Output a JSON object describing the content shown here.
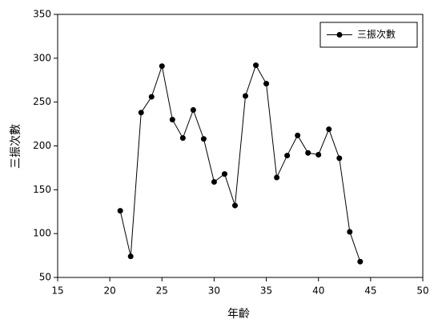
{
  "chart_data": {
    "type": "line",
    "xlabel": "年齡",
    "ylabel": "三振次數",
    "x": [
      21,
      22,
      23,
      24,
      25,
      26,
      27,
      28,
      29,
      30,
      31,
      32,
      33,
      34,
      35,
      36,
      37,
      38,
      39,
      40,
      41,
      42,
      43,
      44
    ],
    "series": [
      {
        "name": "三振次數",
        "color": "#000000",
        "values": [
          126,
          74,
          238,
          256,
          291,
          230,
          209,
          241,
          208,
          159,
          168,
          132,
          257,
          292,
          271,
          164,
          189,
          212,
          192,
          190,
          219,
          186,
          102,
          68
        ]
      }
    ],
    "xlim": [
      15,
      50
    ],
    "xticks": [
      15,
      20,
      25,
      30,
      35,
      40,
      45,
      50
    ],
    "ylim": [
      50,
      350
    ],
    "yticks": [
      50,
      100,
      150,
      200,
      250,
      300,
      350
    ],
    "legend": "upper right",
    "grid": false
  }
}
